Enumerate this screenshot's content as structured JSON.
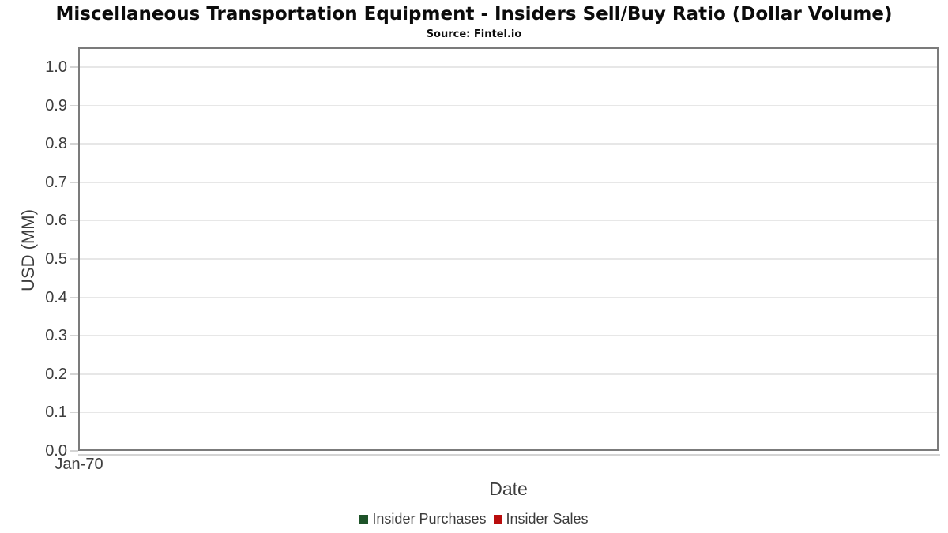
{
  "chart": {
    "title": "Miscellaneous Transportation Equipment - Insiders Sell/Buy Ratio (Dollar Volume)",
    "subtitle": "Source: Fintel.io",
    "x_axis": {
      "label": "Date",
      "ticks": [
        "Jan-70"
      ]
    },
    "y_axis": {
      "label": "USD (MM)",
      "ticks": [
        "0.0",
        "0.1",
        "0.2",
        "0.3",
        "0.4",
        "0.5",
        "0.6",
        "0.7",
        "0.8",
        "0.9",
        "1.0"
      ]
    },
    "legend": [
      {
        "label": "Insider Purchases",
        "color": "#1e5329"
      },
      {
        "label": "Insider Sales",
        "color": "#b90d0d"
      }
    ],
    "colors": {
      "frame_border": "#7b7b7b",
      "gridline": "#e7e7e7",
      "tick": "#d4d4d4",
      "axis_text": "#3d3d3d",
      "title_text": "#0b0b0b"
    }
  },
  "chart_data": {
    "type": "line",
    "title": "Miscellaneous Transportation Equipment - Insiders Sell/Buy Ratio (Dollar Volume)",
    "subtitle": "Source: Fintel.io",
    "xlabel": "Date",
    "ylabel": "USD (MM)",
    "xticks": [
      "Jan-70"
    ],
    "yticks": [
      0.0,
      0.1,
      0.2,
      0.3,
      0.4,
      0.5,
      0.6,
      0.7,
      0.8,
      0.9,
      1.0
    ],
    "ylim": [
      0.0,
      1.05
    ],
    "grid": "horizontal",
    "legend_position": "bottom",
    "x": [],
    "series": [
      {
        "name": "Insider Purchases",
        "color": "#1e5329",
        "values": []
      },
      {
        "name": "Insider Sales",
        "color": "#b90d0d",
        "values": []
      }
    ]
  }
}
